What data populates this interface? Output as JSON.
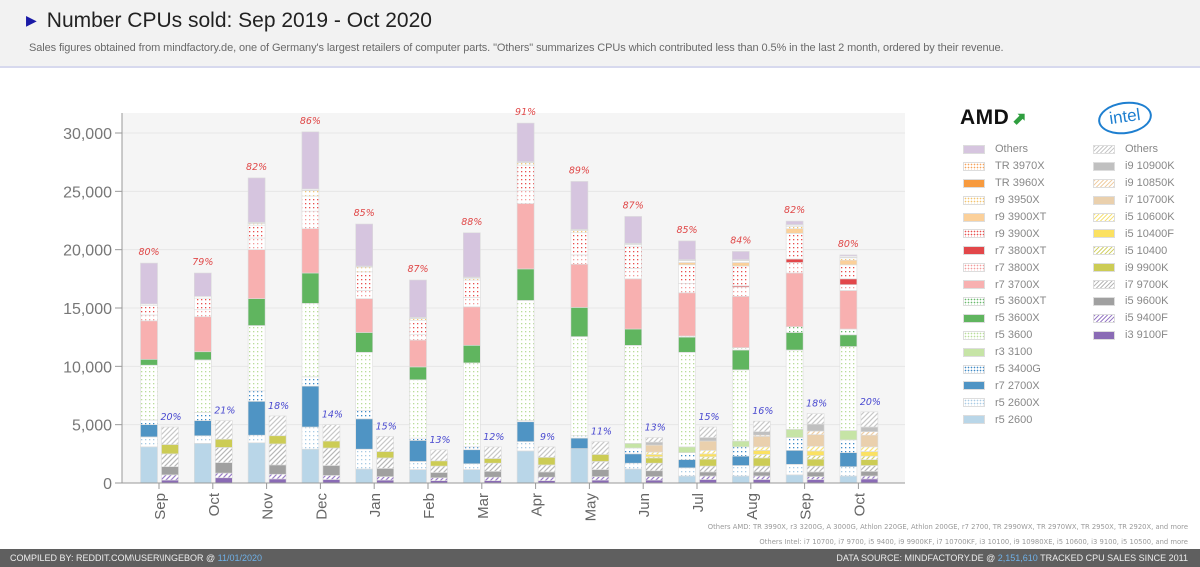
{
  "header": {
    "title": "Number CPUs sold: Sep 2019 - Oct 2020",
    "subtitle": "Sales figures obtained from mindfactory.de, one of Germany's largest retailers of computer parts. \"Others\" summarizes CPUs which contributed less than 0.5% in the last 2 month, ordered by their revenue."
  },
  "legend": {
    "amd_logo": "AMD",
    "intel_logo": "intel",
    "amd": [
      {
        "label": "Others",
        "color": "#d6c5df",
        "pattern": "solid"
      },
      {
        "label": "TR 3970X",
        "color": "#f6a25a",
        "pattern": "dots"
      },
      {
        "label": "TR 3960X",
        "color": "#f79a3e",
        "pattern": "solid"
      },
      {
        "label": "r9 3950X",
        "color": "#f3c46d",
        "pattern": "dots"
      },
      {
        "label": "r9 3900XT",
        "color": "#fbd09a",
        "pattern": "solid"
      },
      {
        "label": "r9 3900X",
        "color": "#e8504f",
        "pattern": "dots"
      },
      {
        "label": "r7 3800XT",
        "color": "#e2474a",
        "pattern": "solid"
      },
      {
        "label": "r7 3800X",
        "color": "#f29c9c",
        "pattern": "dots"
      },
      {
        "label": "r7 3700X",
        "color": "#f8b0b0",
        "pattern": "solid"
      },
      {
        "label": "r5 3600XT",
        "color": "#69b96b",
        "pattern": "dots"
      },
      {
        "label": "r5 3600X",
        "color": "#60b55f",
        "pattern": "solid"
      },
      {
        "label": "r5 3600",
        "color": "#b9dc9a",
        "pattern": "dots"
      },
      {
        "label": "r3 3100",
        "color": "#c6e4a6",
        "pattern": "solid"
      },
      {
        "label": "r5 3400G",
        "color": "#3f8ac5",
        "pattern": "dots"
      },
      {
        "label": "r7 2700X",
        "color": "#4f94c4",
        "pattern": "solid"
      },
      {
        "label": "r5 2600X",
        "color": "#a9cbe4",
        "pattern": "dots"
      },
      {
        "label": "r5 2600",
        "color": "#b9d6e8",
        "pattern": "solid"
      }
    ],
    "intel": [
      {
        "label": "Others",
        "color": "#c8c8c8",
        "pattern": "hatch"
      },
      {
        "label": "i9 10900K",
        "color": "#c0c0c0",
        "pattern": "solid"
      },
      {
        "label": "i9 10850K",
        "color": "#f0cfa6",
        "pattern": "hatch"
      },
      {
        "label": "i7 10700K",
        "color": "#ead0ad",
        "pattern": "solid"
      },
      {
        "label": "i5 10600K",
        "color": "#f6e27a",
        "pattern": "hatch"
      },
      {
        "label": "i5 10400F",
        "color": "#fbe161",
        "pattern": "solid"
      },
      {
        "label": "i5 10400",
        "color": "#d4d36d",
        "pattern": "hatch"
      },
      {
        "label": "i9 9900K",
        "color": "#cccc55",
        "pattern": "solid"
      },
      {
        "label": "i7 9700K",
        "color": "#b8b8b8",
        "pattern": "hatch"
      },
      {
        "label": "i5 9600K",
        "color": "#a0a0a0",
        "pattern": "solid"
      },
      {
        "label": "i5 9400F",
        "color": "#9b7ec7",
        "pattern": "hatch"
      },
      {
        "label": "i3 9100F",
        "color": "#8a6bb5",
        "pattern": "solid"
      }
    ]
  },
  "chart_data": {
    "type": "bar",
    "stacked": true,
    "grouped": true,
    "title": "Number CPUs sold: Sep 2019 - Oct 2020",
    "xlabel": "",
    "ylabel": "",
    "ylim": [
      0,
      31500
    ],
    "yticks": [
      0,
      5000,
      10000,
      15000,
      20000,
      25000,
      30000
    ],
    "ytick_labels": [
      "0",
      "5,000",
      "10,000",
      "15,000",
      "20,000",
      "25,000",
      "30,000"
    ],
    "grid": true,
    "categories": [
      "Sep",
      "Oct",
      "Nov",
      "Dec",
      "Jan",
      "Feb",
      "Mar",
      "Apr",
      "May",
      "Jun",
      "Jul",
      "Aug",
      "Sep",
      "Oct"
    ],
    "amd_share_labels": [
      "80%",
      "79%",
      "82%",
      "86%",
      "85%",
      "87%",
      "88%",
      "91%",
      "89%",
      "87%",
      "85%",
      "84%",
      "82%",
      "80%"
    ],
    "intel_share_labels": [
      "20%",
      "21%",
      "18%",
      "14%",
      "15%",
      "13%",
      "12%",
      "9%",
      "11%",
      "13%",
      "15%",
      "16%",
      "18%",
      "20%"
    ],
    "amd_series_order_bottom_up": [
      "r5 2600",
      "r5 2600X",
      "r7 2700X",
      "r5 3400G",
      "r3 3100",
      "r5 3600",
      "r5 3600X",
      "r5 3600XT",
      "r7 3700X",
      "r7 3800X",
      "r7 3800XT",
      "r9 3900X",
      "r9 3900XT",
      "r9 3950X",
      "TR 3960X",
      "TR 3970X",
      "Others"
    ],
    "amd_series": [
      {
        "name": "r5 2600",
        "values": [
          3100,
          3400,
          3450,
          2900,
          1200,
          1150,
          1150,
          2750,
          2950,
          1200,
          600,
          600,
          700,
          600
        ]
      },
      {
        "name": "r5 2600X",
        "values": [
          850,
          650,
          650,
          1900,
          1700,
          700,
          500,
          800,
          0,
          500,
          700,
          900,
          900,
          800
        ]
      },
      {
        "name": "r7 2700X",
        "values": [
          1050,
          1300,
          2900,
          3500,
          2600,
          1800,
          1200,
          1700,
          900,
          800,
          700,
          800,
          1200,
          1200
        ]
      },
      {
        "name": "r5 3400G",
        "values": [
          400,
          700,
          900,
          800,
          700,
          200,
          250,
          100,
          200,
          500,
          600,
          800,
          1100,
          1100
        ]
      },
      {
        "name": "r3 3100",
        "values": [
          0,
          0,
          0,
          0,
          0,
          0,
          0,
          0,
          0,
          400,
          500,
          500,
          700,
          800
        ]
      },
      {
        "name": "r5 3600",
        "values": [
          4700,
          4500,
          5600,
          6300,
          5000,
          5000,
          7200,
          10300,
          8500,
          8400,
          8100,
          6100,
          6800,
          7200
        ]
      },
      {
        "name": "r5 3600X",
        "values": [
          500,
          700,
          2300,
          2600,
          1700,
          1100,
          1500,
          2700,
          2500,
          1400,
          1300,
          1700,
          1500,
          1000
        ]
      },
      {
        "name": "r5 3600XT",
        "values": [
          0,
          0,
          0,
          0,
          0,
          0,
          0,
          0,
          0,
          0,
          100,
          200,
          500,
          500
        ]
      },
      {
        "name": "r7 3700X",
        "values": [
          3300,
          3000,
          4200,
          3800,
          2900,
          2300,
          3300,
          5600,
          3700,
          4300,
          3700,
          4400,
          4600,
          3300
        ]
      },
      {
        "name": "r7 3800X",
        "values": [
          500,
          600,
          1000,
          1500,
          700,
          500,
          800,
          1100,
          800,
          900,
          800,
          800,
          900,
          500
        ]
      },
      {
        "name": "r7 3800XT",
        "values": [
          0,
          0,
          0,
          0,
          0,
          0,
          0,
          0,
          0,
          0,
          0,
          100,
          300,
          500
        ]
      },
      {
        "name": "r9 3900X",
        "values": [
          800,
          1000,
          1100,
          1300,
          1600,
          1200,
          1500,
          2200,
          1900,
          1900,
          1600,
          1700,
          2200,
          1200
        ]
      },
      {
        "name": "r9 3900XT",
        "values": [
          0,
          0,
          0,
          0,
          0,
          0,
          0,
          0,
          0,
          0,
          200,
          300,
          400,
          400
        ]
      },
      {
        "name": "r9 3950X",
        "values": [
          150,
          150,
          150,
          450,
          400,
          150,
          150,
          200,
          200,
          150,
          150,
          150,
          200,
          200
        ]
      },
      {
        "name": "TR 3960X",
        "values": [
          0,
          0,
          50,
          50,
          50,
          50,
          50,
          50,
          50,
          50,
          50,
          50,
          50,
          50
        ]
      },
      {
        "name": "TR 3970X",
        "values": [
          0,
          0,
          50,
          100,
          50,
          50,
          50,
          50,
          50,
          50,
          50,
          50,
          100,
          100
        ]
      },
      {
        "name": "Others",
        "values": [
          3500,
          2000,
          3800,
          4900,
          3600,
          3200,
          3800,
          3300,
          4100,
          2300,
          1600,
          700,
          300,
          100
        ]
      }
    ],
    "intel_series_order_bottom_up": [
      "i3 9100F",
      "i5 9400F",
      "i5 9600K",
      "i7 9700K",
      "i9 9900K",
      "i5 10400",
      "i5 10400F",
      "i5 10600K",
      "i7 10700K",
      "i9 10850K",
      "i9 10900K",
      "Others"
    ],
    "intel_series": [
      {
        "name": "i3 9100F",
        "values": [
          250,
          450,
          350,
          300,
          250,
          200,
          200,
          200,
          250,
          250,
          300,
          300,
          300,
          350
        ]
      },
      {
        "name": "i5 9400F",
        "values": [
          450,
          400,
          400,
          350,
          300,
          250,
          300,
          300,
          300,
          300,
          300,
          300,
          250,
          250
        ]
      },
      {
        "name": "i5 9600K",
        "values": [
          700,
          900,
          800,
          850,
          700,
          450,
          500,
          450,
          600,
          500,
          350,
          350,
          400,
          400
        ]
      },
      {
        "name": "i7 9700K",
        "values": [
          1100,
          1300,
          1800,
          1500,
          900,
          550,
          700,
          600,
          700,
          650,
          500,
          500,
          500,
          500
        ]
      },
      {
        "name": "i9 9900K",
        "values": [
          800,
          700,
          700,
          600,
          550,
          450,
          400,
          650,
          600,
          450,
          600,
          700,
          600,
          500
        ]
      },
      {
        "name": "i5 10400",
        "values": [
          0,
          0,
          0,
          0,
          0,
          0,
          0,
          0,
          0,
          100,
          200,
          300,
          300,
          300
        ]
      },
      {
        "name": "i5 10400F",
        "values": [
          0,
          0,
          0,
          0,
          0,
          0,
          0,
          0,
          0,
          200,
          250,
          350,
          400,
          400
        ]
      },
      {
        "name": "i5 10600K",
        "values": [
          0,
          0,
          0,
          0,
          0,
          0,
          0,
          0,
          0,
          200,
          300,
          300,
          400,
          400
        ]
      },
      {
        "name": "i7 10700K",
        "values": [
          0,
          0,
          0,
          0,
          0,
          0,
          0,
          0,
          0,
          600,
          800,
          900,
          1000,
          1000
        ]
      },
      {
        "name": "i9 10850K",
        "values": [
          0,
          0,
          0,
          0,
          0,
          0,
          0,
          0,
          0,
          0,
          0,
          100,
          300,
          300
        ]
      },
      {
        "name": "i9 10900K",
        "values": [
          0,
          0,
          0,
          0,
          0,
          0,
          0,
          0,
          0,
          250,
          300,
          300,
          600,
          400
        ]
      },
      {
        "name": "Others",
        "values": [
          1500,
          1600,
          1700,
          1400,
          1300,
          950,
          1000,
          900,
          1100,
          400,
          900,
          900,
          900,
          1300
        ]
      }
    ]
  },
  "footnotes": {
    "others_amd": "Others AMD: TR 3990X, r3 3200G, A 3000G, Athlon 220GE, Athlon 200GE, r7 2700, TR 2990WX, TR 2970WX, TR 2950X, TR 2920X, and more",
    "others_intel": "Others Intel: i7 10700, i7 9700, i5 9400, i9 9900KF, i7 10700KF, i3 10100, i9 10980XE, i5 10600, i3 9100, i5 10500, and more"
  },
  "footer": {
    "left_prefix": "COMPILED BY: REDDIT.COM\\USER\\INGEBOR @ ",
    "left_date": "11/01/2020",
    "right_prefix": "DATA SOURCE: MINDFACTORY.DE @ ",
    "right_count": "2,151,610",
    "right_suffix": " TRACKED CPU SALES SINCE 2011"
  }
}
